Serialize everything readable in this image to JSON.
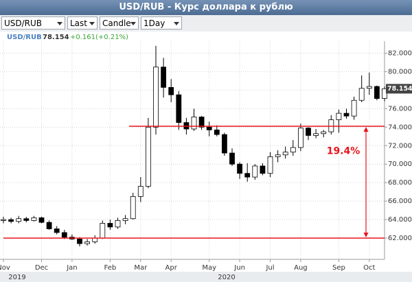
{
  "window": {
    "title": "USD/RUB - Курс доллара к рублю"
  },
  "toolbar": {
    "symbol": "USD/RUB",
    "price_field": "Last",
    "chart_style": "Candle",
    "interval": "1Day"
  },
  "chart_data": {
    "type": "candlestick",
    "legend": {
      "symbol": "USD/RUB",
      "last": 78.154,
      "change": "+0.161(+0.21%)"
    },
    "categories": [
      "Nov",
      null,
      null,
      null,
      null,
      "Dec",
      null,
      null,
      null,
      "Jan",
      null,
      null,
      null,
      null,
      "Feb",
      null,
      null,
      null,
      "Mar",
      null,
      null,
      null,
      "Apr",
      null,
      null,
      null,
      null,
      "May",
      null,
      null,
      null,
      "Jun",
      null,
      null,
      null,
      "Jul",
      null,
      null,
      null,
      "Aug",
      null,
      null,
      null,
      null,
      "Sep",
      null,
      null,
      null,
      "Oct",
      null,
      null
    ],
    "years": [
      "2019",
      "2020"
    ],
    "open": [
      63.9,
      64.0,
      63.8,
      64.1,
      63.9,
      64.2,
      63.7,
      63.0,
      62.6,
      62.1,
      61.9,
      61.4,
      61.6,
      62.0,
      63.6,
      63.2,
      63.9,
      64.1,
      66.5,
      67.6,
      74.0,
      80.5,
      78.3,
      77.5,
      74.5,
      73.8,
      75.1,
      74.0,
      73.7,
      73.2,
      71.2,
      70.0,
      69.0,
      68.6,
      69.8,
      69.0,
      70.8,
      71.0,
      71.3,
      71.8,
      73.9,
      73.1,
      73.3,
      73.5,
      74.8,
      75.5,
      75.2,
      76.9,
      78.2,
      78.4,
      77.1
    ],
    "high": [
      64.3,
      64.2,
      64.4,
      64.3,
      64.4,
      64.3,
      63.9,
      63.3,
      62.9,
      62.4,
      62.1,
      61.9,
      62.3,
      63.9,
      64.0,
      64.2,
      64.5,
      66.9,
      68.6,
      75.0,
      82.8,
      81.5,
      79.2,
      77.9,
      75.0,
      76.0,
      75.2,
      74.6,
      74.2,
      73.4,
      71.7,
      70.2,
      70.1,
      70.0,
      70.1,
      71.3,
      71.5,
      71.9,
      72.6,
      74.4,
      74.0,
      73.8,
      73.7,
      75.3,
      75.9,
      76.0,
      77.3,
      79.6,
      79.9,
      78.5,
      78.4
    ],
    "low": [
      63.6,
      63.6,
      63.6,
      63.7,
      63.8,
      63.6,
      62.9,
      62.4,
      61.9,
      61.8,
      61.1,
      61.2,
      61.4,
      61.9,
      62.9,
      63.0,
      63.5,
      64.0,
      65.9,
      67.4,
      73.2,
      77.2,
      76.7,
      73.7,
      73.2,
      73.6,
      73.7,
      73.0,
      73.0,
      70.9,
      69.8,
      68.4,
      68.1,
      68.3,
      68.8,
      68.6,
      70.2,
      70.6,
      70.9,
      71.4,
      72.6,
      72.8,
      72.9,
      73.2,
      73.4,
      74.9,
      74.8,
      76.7,
      77.5,
      76.9,
      76.8
    ],
    "close": [
      64.0,
      63.8,
      64.1,
      63.9,
      64.2,
      63.7,
      63.0,
      62.6,
      62.1,
      61.9,
      61.4,
      61.6,
      62.0,
      63.6,
      63.2,
      63.9,
      64.1,
      66.5,
      67.6,
      74.0,
      80.5,
      78.3,
      77.5,
      74.5,
      73.8,
      75.1,
      74.0,
      73.7,
      73.2,
      71.2,
      70.0,
      69.0,
      68.6,
      69.8,
      69.0,
      70.8,
      71.0,
      71.3,
      71.8,
      73.9,
      73.1,
      73.3,
      73.5,
      74.8,
      75.5,
      75.2,
      76.9,
      78.2,
      78.4,
      77.1,
      78.154
    ],
    "color": "#000000",
    "up_fill": "#ffffff",
    "ylim": [
      59.7,
      83.3
    ],
    "yticks": [
      {
        "value": 62,
        "label": "62.000"
      },
      {
        "value": 64,
        "label": "64.000"
      },
      {
        "value": 66,
        "label": "66.000"
      },
      {
        "value": 68,
        "label": "68.000"
      },
      {
        "value": 70,
        "label": "70.000"
      },
      {
        "value": 72,
        "label": "72.000"
      },
      {
        "value": 74,
        "label": "74.000"
      },
      {
        "value": 76,
        "label": "76.000"
      },
      {
        "value": 78,
        "label": "78.000"
      },
      {
        "value": 80,
        "label": "80.000"
      },
      {
        "value": 82,
        "label": "82.000"
      }
    ],
    "grid": true,
    "hlines": [
      {
        "value": 74.1,
        "color": "#e8141c"
      },
      {
        "value": 62.0,
        "color": "#e8141c"
      }
    ],
    "annotation": {
      "text": "19.4%",
      "color": "#e8141c"
    }
  }
}
